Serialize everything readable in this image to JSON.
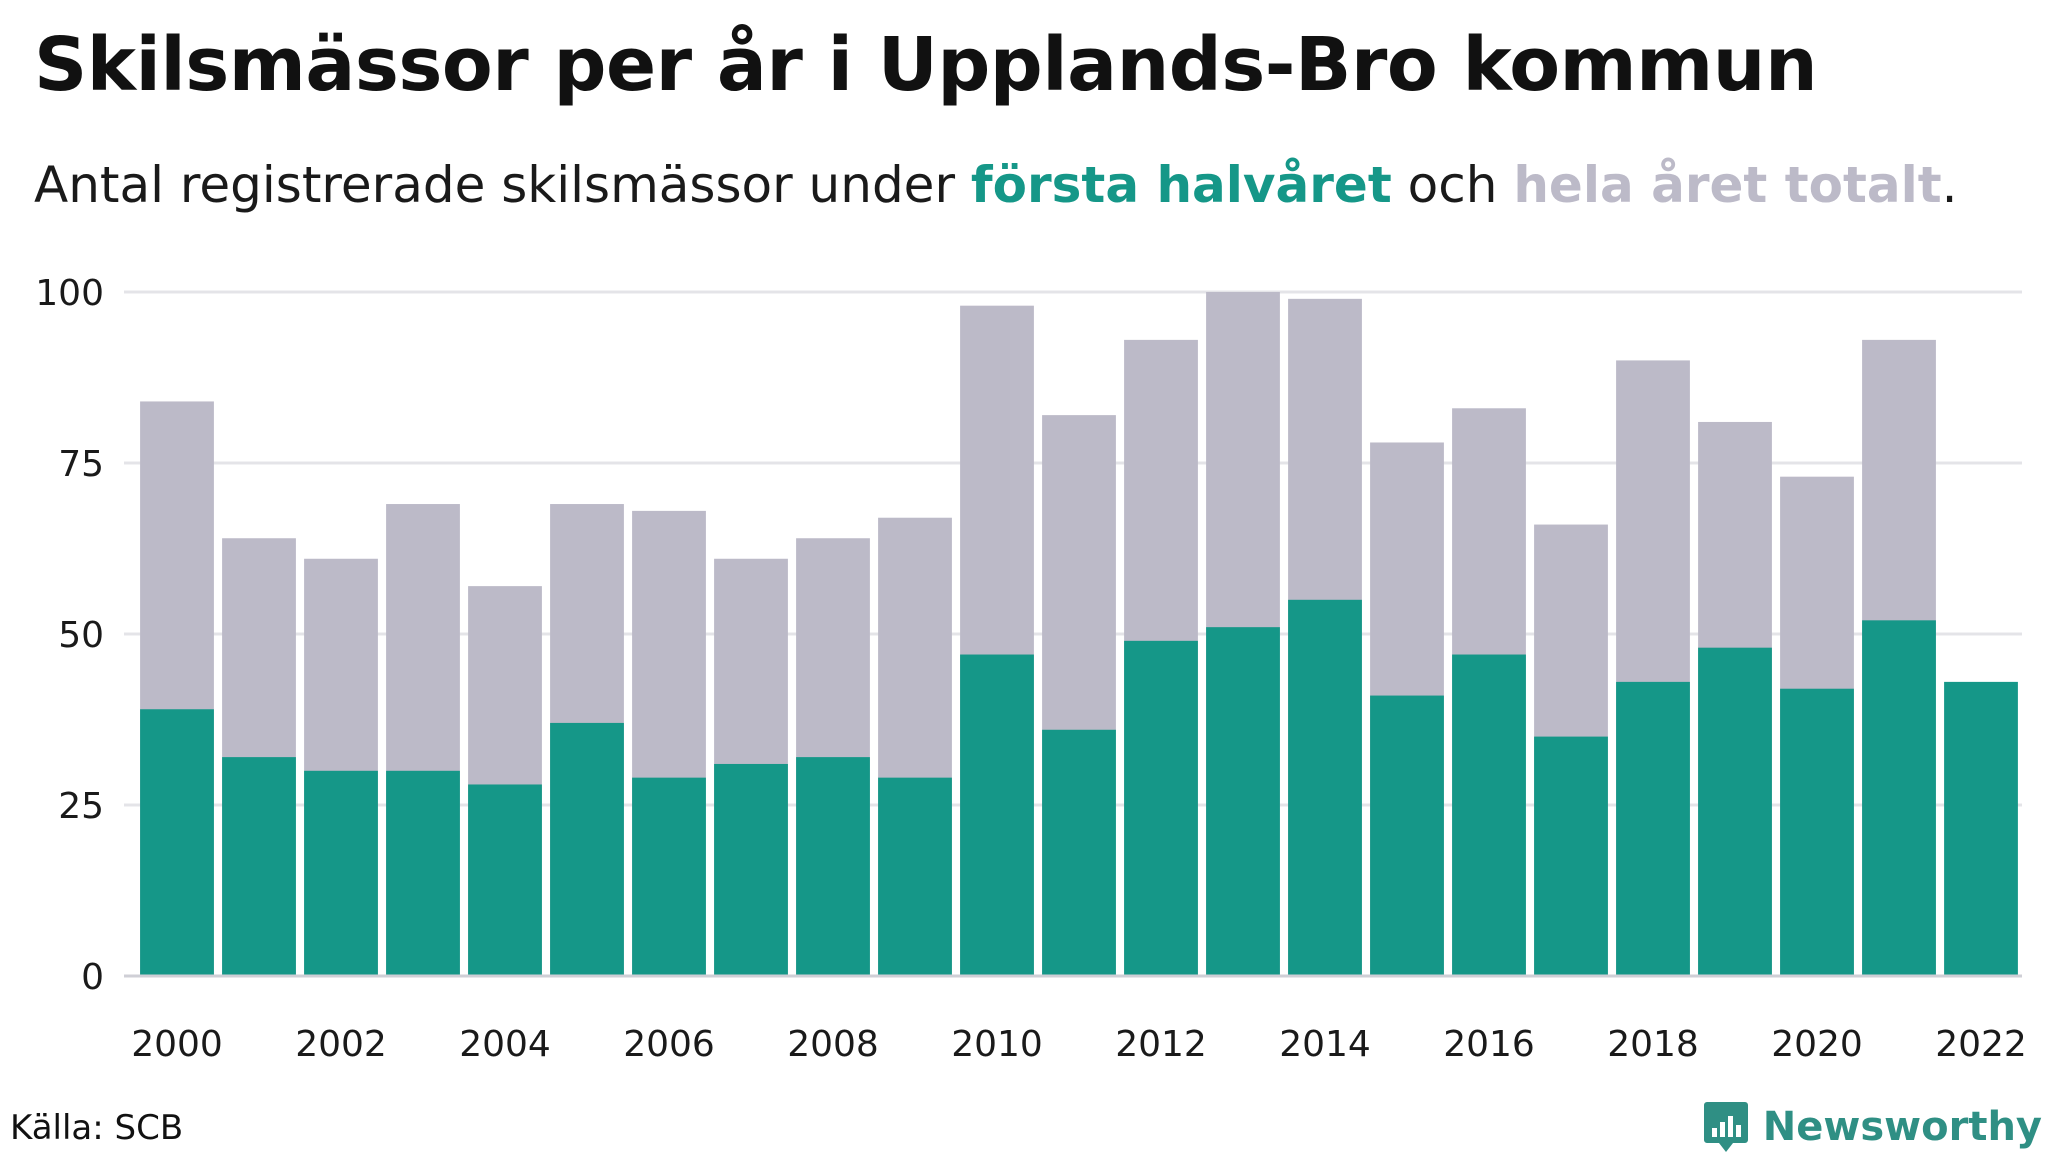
{
  "title": "Skilsmässor per år i Upplands-Bro kommun",
  "subtitle": {
    "prefix": "Antal registrerade skilsmässor under ",
    "first_half": "första halvåret",
    "middle": " och ",
    "full_year": "hela året totalt",
    "suffix": "."
  },
  "colors": {
    "first_half": "#159788",
    "full_year": "#bcbac8",
    "grid": "#e4e4e8"
  },
  "source": "Källa: SCB",
  "logo": {
    "text": "Newsworthy",
    "icon": "newsworthy-logo-icon"
  },
  "chart_data": {
    "type": "bar",
    "categories": [
      2000,
      2001,
      2002,
      2003,
      2004,
      2005,
      2006,
      2007,
      2008,
      2009,
      2010,
      2011,
      2012,
      2013,
      2014,
      2015,
      2016,
      2017,
      2018,
      2019,
      2020,
      2021,
      2022
    ],
    "series": [
      {
        "name": "hela året totalt",
        "values": [
          84,
          64,
          61,
          69,
          57,
          69,
          68,
          61,
          64,
          67,
          98,
          82,
          93,
          100,
          99,
          78,
          83,
          66,
          90,
          81,
          73,
          93,
          null
        ]
      },
      {
        "name": "första halvåret",
        "values": [
          39,
          32,
          30,
          30,
          28,
          37,
          29,
          31,
          32,
          29,
          47,
          36,
          49,
          51,
          55,
          41,
          47,
          35,
          43,
          48,
          42,
          52,
          43
        ]
      }
    ],
    "ylim": [
      0,
      100
    ],
    "yticks": [
      0,
      25,
      50,
      75,
      100
    ],
    "xticks": [
      "2000",
      "2002",
      "2004",
      "2006",
      "2008",
      "2010",
      "2012",
      "2014",
      "2016",
      "2018",
      "2020",
      "2022"
    ],
    "grid": true,
    "legend": "in subtitle"
  }
}
